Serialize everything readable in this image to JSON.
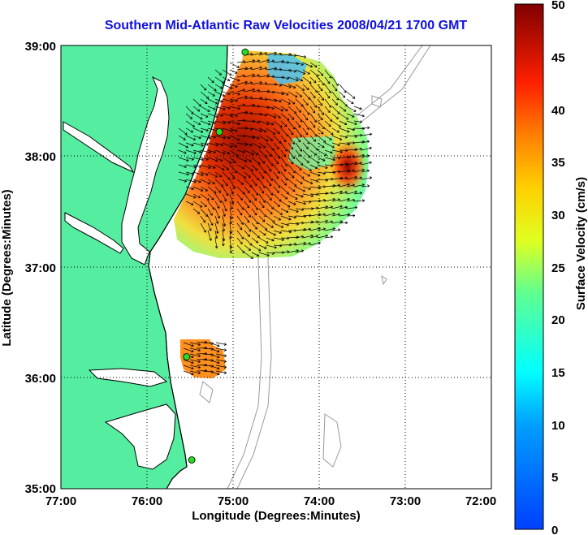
{
  "title": "Southern Mid-Atlantic Raw Velocities 2008/04/21 1700 GMT",
  "xlabel": "Longitude (Degrees:Minutes)",
  "ylabel": "Latitude (Degrees:Minutes)",
  "colorbar_label": "Surface Velocity (cm/s)",
  "x_ticks": [
    "77:00",
    "76:00",
    "75:00",
    "74:00",
    "73:00",
    "72:00"
  ],
  "y_ticks": [
    "39:00",
    "38:00",
    "37:00",
    "36:00",
    "35:00"
  ],
  "colorbar_ticks": [
    "50",
    "45",
    "40",
    "35",
    "30",
    "25",
    "20",
    "15",
    "10",
    "5",
    "0"
  ],
  "colors": {
    "land": "#55eea0",
    "ocean": "#ffffff",
    "coast": "#000000",
    "bathymetry": "#999999",
    "title": "#1010e0",
    "station": "#22dd22"
  },
  "map": {
    "lon_range": [
      -77,
      -72
    ],
    "lat_range": [
      35,
      39
    ],
    "grid": true,
    "colormap": "jet",
    "velocity_range_cm_s": [
      0,
      50
    ],
    "stations": [
      {
        "lon": -74.86,
        "lat": 38.94
      },
      {
        "lon": -75.16,
        "lat": 38.22
      },
      {
        "lon": -75.54,
        "lat": 36.19
      },
      {
        "lon": -75.48,
        "lat": 35.26
      }
    ],
    "northern_field_bounds": {
      "lon": [
        -75.9,
        -73.4
      ],
      "lat": [
        37.1,
        39.0
      ]
    },
    "southern_field_bounds": {
      "lon": [
        -75.6,
        -75.0
      ],
      "lat": [
        35.95,
        36.38
      ]
    }
  }
}
